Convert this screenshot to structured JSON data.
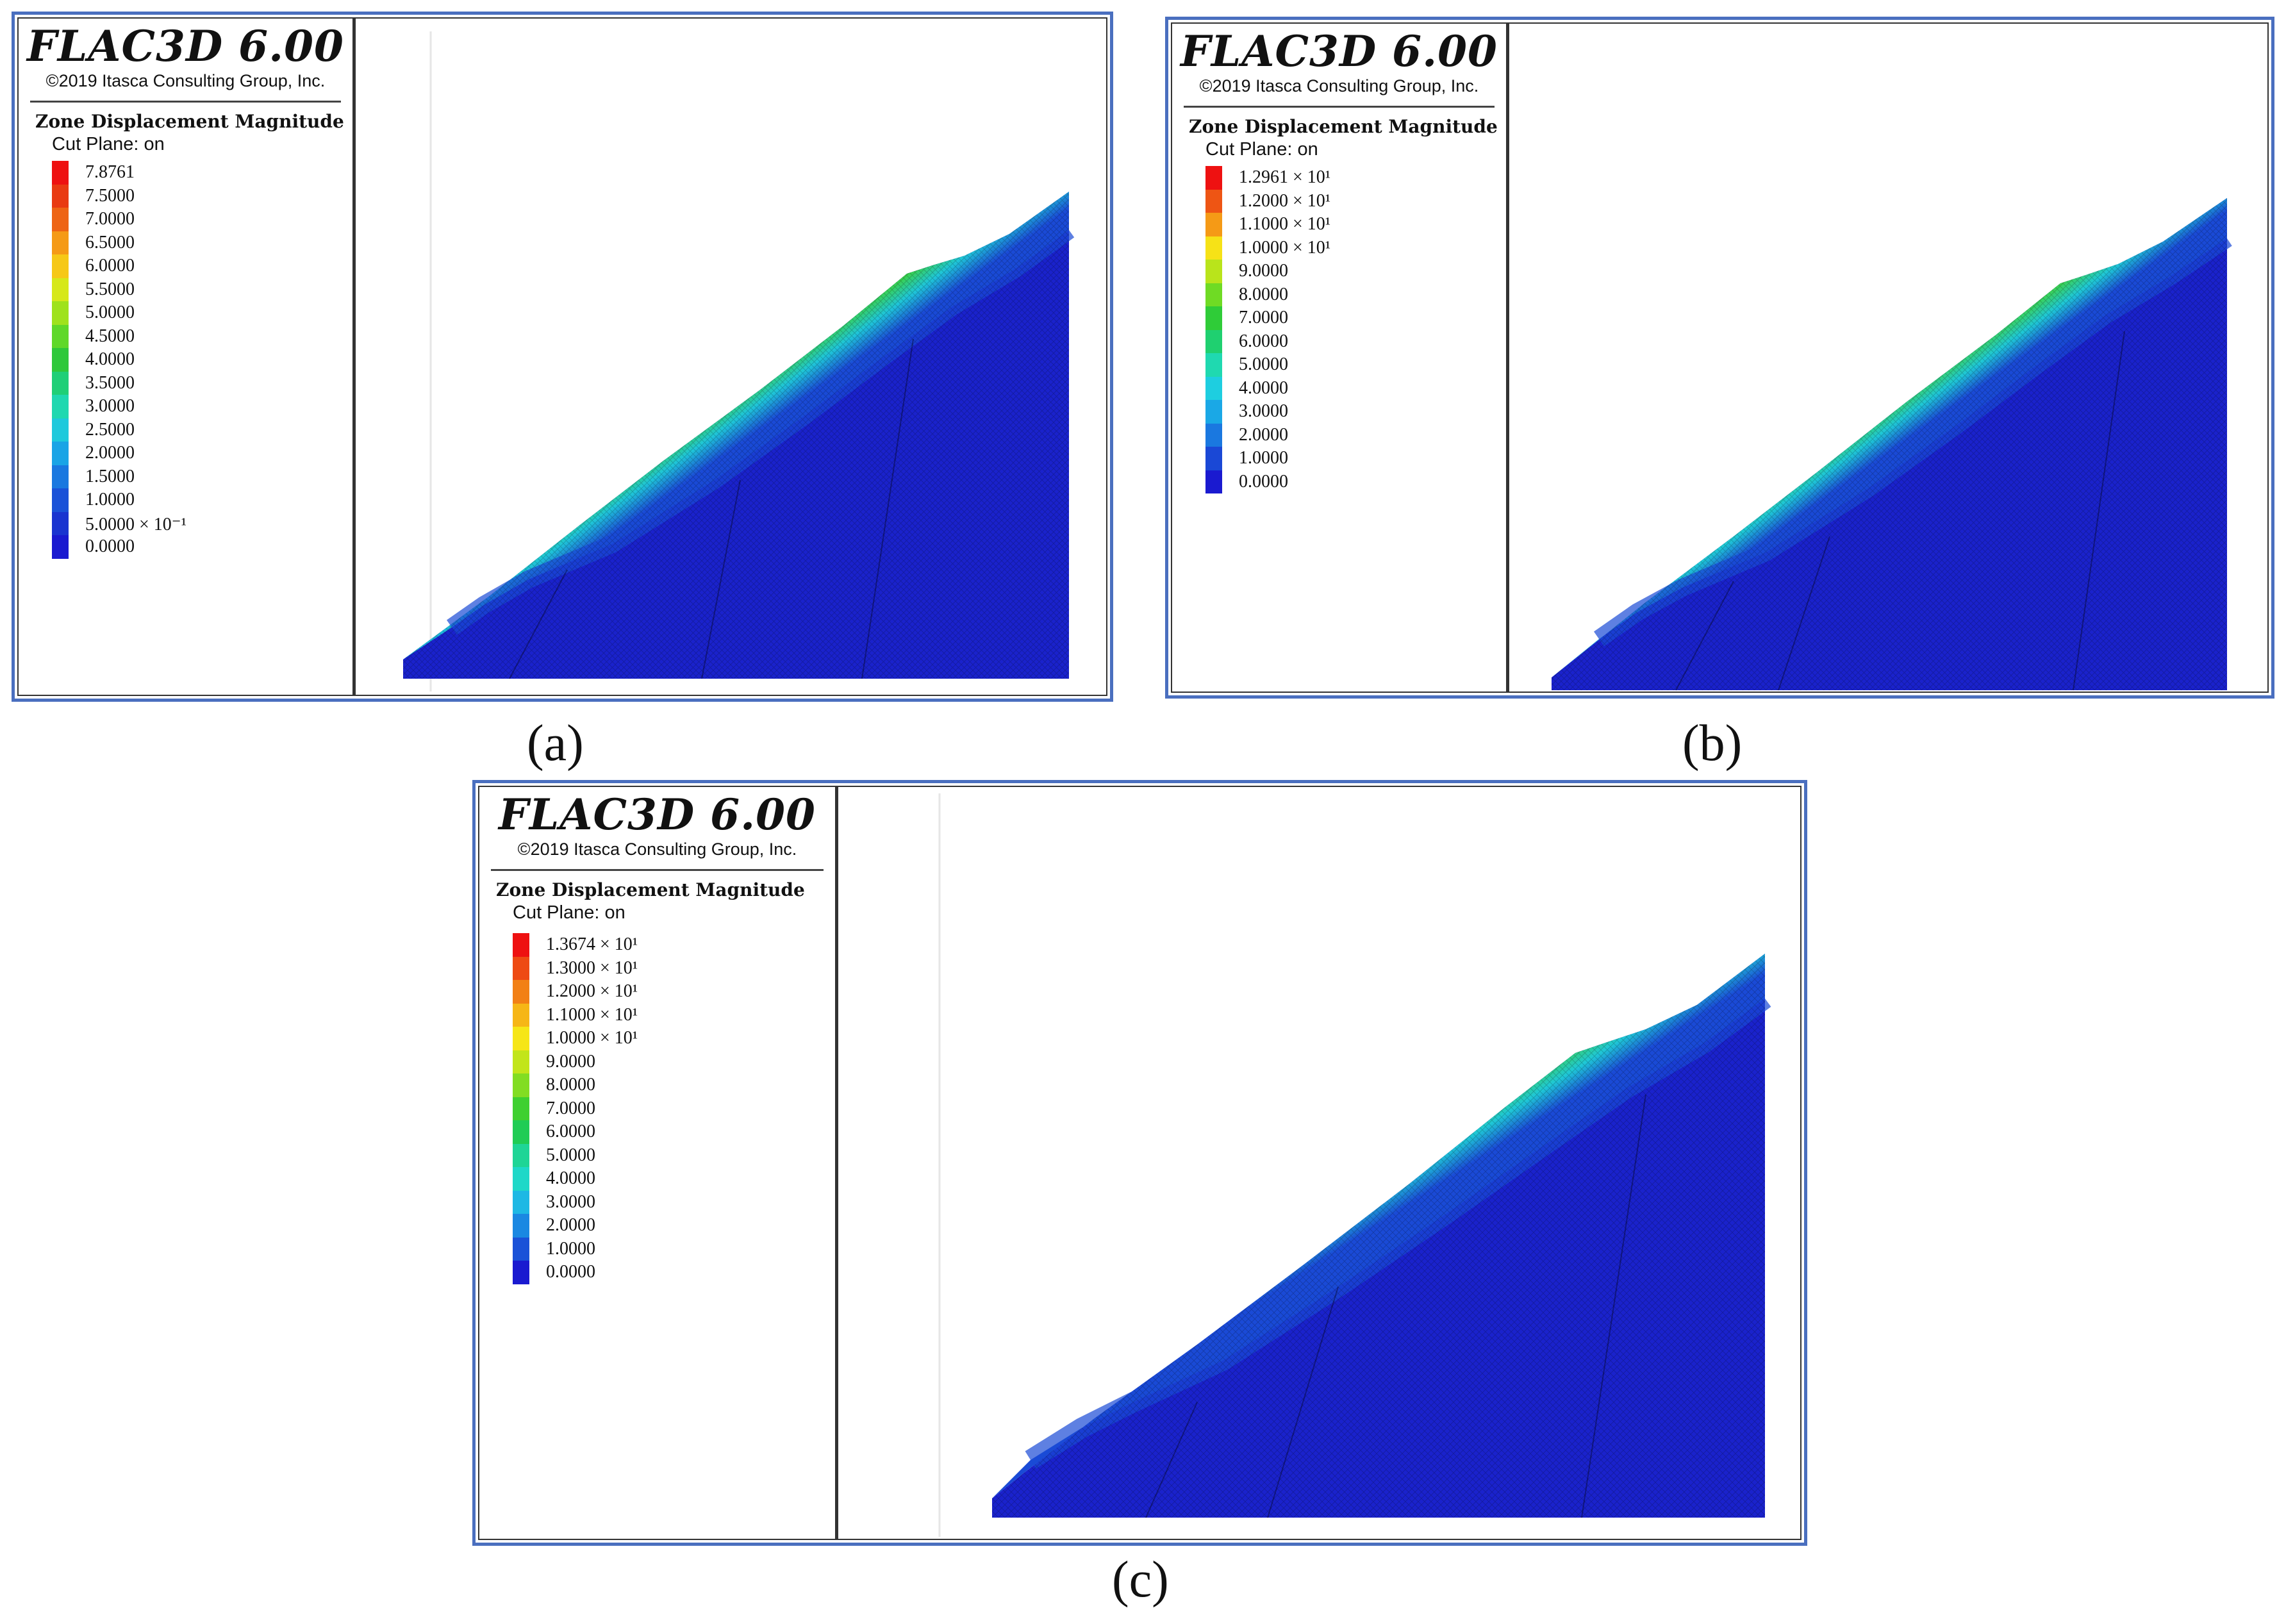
{
  "panels": [
    {
      "id": "a",
      "app_title": "FLAC3D 6.00",
      "copyright": "©2019 Itasca Consulting Group, Inc.",
      "plot_label": "Zone Displacement Magnitude",
      "cut_plane": "Cut Plane: on",
      "caption": "(a)",
      "legend": [
        {
          "value": "7.8761",
          "color": "#ee1111"
        },
        {
          "value": "7.5000",
          "color": "#e93a12"
        },
        {
          "value": "7.0000",
          "color": "#ee6414"
        },
        {
          "value": "6.5000",
          "color": "#f59a16"
        },
        {
          "value": "6.0000",
          "color": "#f6c817"
        },
        {
          "value": "5.5000",
          "color": "#d6e81a"
        },
        {
          "value": "5.0000",
          "color": "#9fe21c"
        },
        {
          "value": "4.5000",
          "color": "#5fd829"
        },
        {
          "value": "4.0000",
          "color": "#2ec83a"
        },
        {
          "value": "3.5000",
          "color": "#1fcf77"
        },
        {
          "value": "3.0000",
          "color": "#1fd8b0"
        },
        {
          "value": "2.5000",
          "color": "#1ec9dc"
        },
        {
          "value": "2.0000",
          "color": "#1aa4e6"
        },
        {
          "value": "1.5000",
          "color": "#1a78e0"
        },
        {
          "value": "1.0000",
          "color": "#1a52d8"
        },
        {
          "value": "5.0000 × 10⁻¹",
          "color": "#1a34d0"
        },
        {
          "value": "0.0000",
          "color": "#1a1ad0"
        }
      ]
    },
    {
      "id": "b",
      "app_title": "FLAC3D 6.00",
      "copyright": "©2019 Itasca Consulting Group, Inc.",
      "plot_label": "Zone Displacement Magnitude",
      "cut_plane": "Cut Plane: on",
      "caption": "(b)",
      "legend": [
        {
          "value": "1.2961 × 10¹",
          "color": "#ee1111"
        },
        {
          "value": "1.2000 × 10¹",
          "color": "#ee5514"
        },
        {
          "value": "1.1000 × 10¹",
          "color": "#f59a16"
        },
        {
          "value": "1.0000 × 10¹",
          "color": "#f6e217"
        },
        {
          "value": "9.0000",
          "color": "#b9e41b"
        },
        {
          "value": "8.0000",
          "color": "#6fdb24"
        },
        {
          "value": "7.0000",
          "color": "#2fcc38"
        },
        {
          "value": "6.0000",
          "color": "#1fd070"
        },
        {
          "value": "5.0000",
          "color": "#1fd9b0"
        },
        {
          "value": "4.0000",
          "color": "#1ecee0"
        },
        {
          "value": "3.0000",
          "color": "#1aa8e6"
        },
        {
          "value": "2.0000",
          "color": "#1a78e0"
        },
        {
          "value": "1.0000",
          "color": "#1a48d6"
        },
        {
          "value": "0.0000",
          "color": "#1a1ad0"
        }
      ]
    },
    {
      "id": "c",
      "app_title": "FLAC3D 6.00",
      "copyright": "©2019 Itasca Consulting Group, Inc.",
      "plot_label": "Zone Displacement Magnitude",
      "cut_plane": "Cut Plane: on",
      "caption": "(c)",
      "legend": [
        {
          "value": "1.3674 × 10¹",
          "color": "#ee1111"
        },
        {
          "value": "1.3000 × 10¹",
          "color": "#ee4a13"
        },
        {
          "value": "1.2000 × 10¹",
          "color": "#f28015"
        },
        {
          "value": "1.1000 × 10¹",
          "color": "#f6b616"
        },
        {
          "value": "1.0000 × 10¹",
          "color": "#f6e617"
        },
        {
          "value": "9.0000",
          "color": "#c2e51a"
        },
        {
          "value": "8.0000",
          "color": "#82dd22"
        },
        {
          "value": "7.0000",
          "color": "#3fd030"
        },
        {
          "value": "6.0000",
          "color": "#20cc55"
        },
        {
          "value": "5.0000",
          "color": "#1fd596"
        },
        {
          "value": "4.0000",
          "color": "#1fd8c8"
        },
        {
          "value": "3.0000",
          "color": "#1eb8e4"
        },
        {
          "value": "2.0000",
          "color": "#1a88e2"
        },
        {
          "value": "1.0000",
          "color": "#1a52d8"
        },
        {
          "value": "0.0000",
          "color": "#1a1ad0"
        }
      ]
    }
  ]
}
